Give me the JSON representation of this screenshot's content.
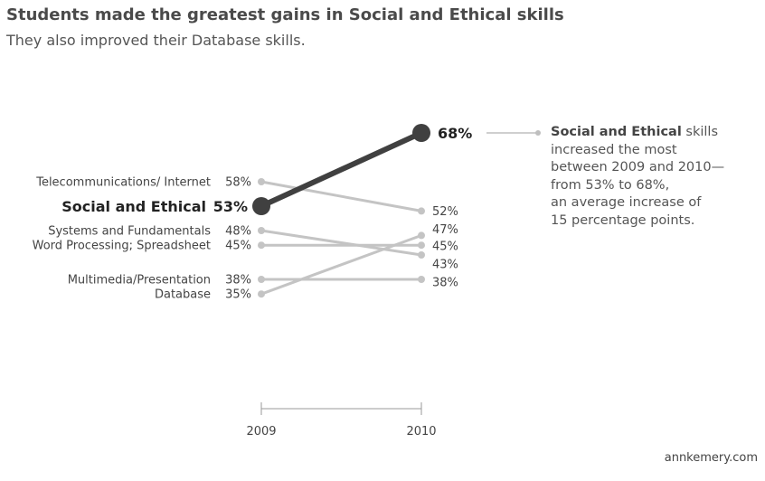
{
  "header": {
    "title": "Students made the greatest gains in Social and Ethical skills",
    "subtitle": "They also improved their Database skills."
  },
  "callout": {
    "highlight": "Social and Ethical",
    "lines": [
      "skills",
      "increased the most",
      "between 2009 and 2010—",
      "from 53% to 68%,",
      "an average increase of",
      "15 percentage points."
    ]
  },
  "source": "annkemery.com",
  "chart_data": {
    "type": "line",
    "x": [
      "2009",
      "2010"
    ],
    "ylim": [
      30,
      72
    ],
    "highlight_series": "Social and Ethical",
    "colors": {
      "highlight": "#404040",
      "other": "#c4c4c4"
    },
    "series": [
      {
        "name": "Telecommunications/ Internet",
        "values": [
          58,
          52
        ],
        "labels": [
          "58%",
          "52%"
        ]
      },
      {
        "name": "Social and Ethical",
        "values": [
          53,
          68
        ],
        "labels": [
          "53%",
          "68%"
        ]
      },
      {
        "name": "Systems and Fundamentals",
        "values": [
          48,
          43
        ],
        "labels": [
          "48%",
          "43%"
        ]
      },
      {
        "name": "Word Processing; Spreadsheet",
        "values": [
          45,
          45
        ],
        "labels": [
          "45%",
          "45%"
        ]
      },
      {
        "name": "Multimedia/Presentation",
        "values": [
          38,
          38
        ],
        "labels": [
          "38%",
          "38%"
        ]
      },
      {
        "name": "Database",
        "values": [
          35,
          47
        ],
        "labels": [
          "35%",
          "47%"
        ]
      }
    ]
  }
}
